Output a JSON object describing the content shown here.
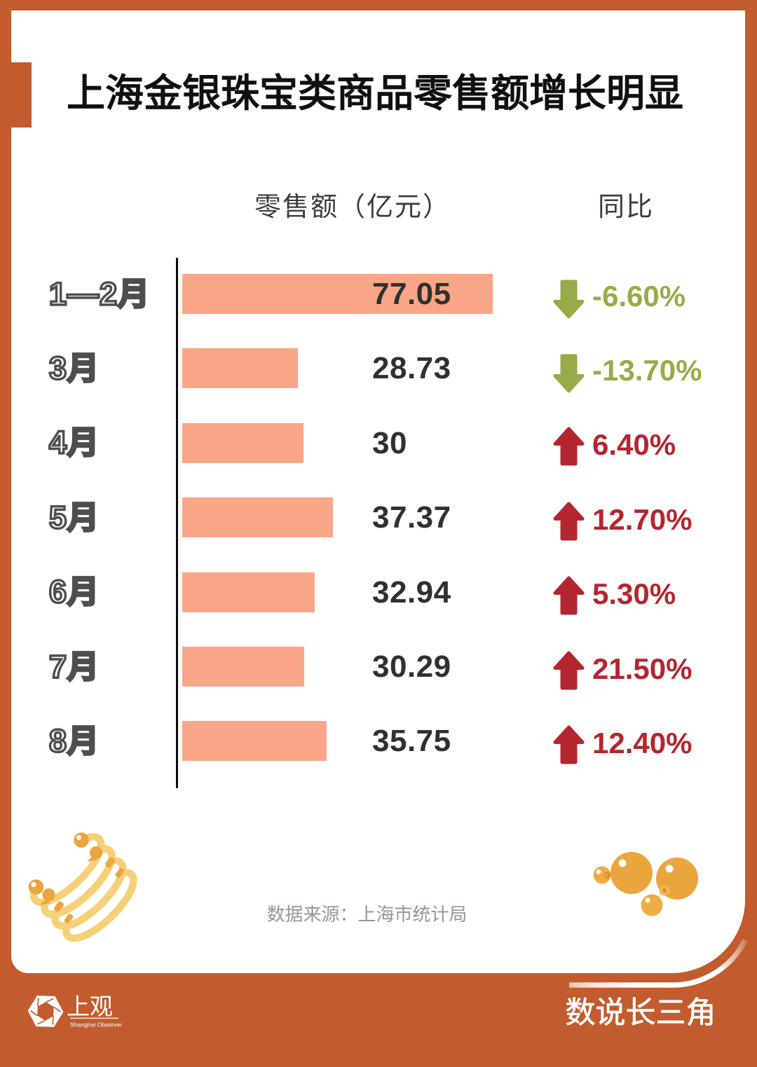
{
  "page": {
    "title": "上海金银珠宝类商品零售额增长明显",
    "source_note": "数据来源：上海市统计局",
    "footer": {
      "logo_cn": "上观",
      "logo_en": "Shanghai Observer",
      "brand": "数说长三角"
    },
    "colors": {
      "frame": "#C25B2D",
      "card": "#FFFFFF",
      "bar": "#F8A687",
      "up": "#B4262F",
      "down": "#97AB48",
      "gold_light": "#F5CE70",
      "gold_dark": "#EBA53E"
    }
  },
  "chart_data": {
    "type": "bar",
    "orientation": "horizontal",
    "title": "上海金银珠宝类商品零售额增长明显",
    "column_headers": {
      "value": "零售额（亿元）",
      "yoy": "同比"
    },
    "categories": [
      "1—2月",
      "3月",
      "4月",
      "5月",
      "6月",
      "7月",
      "8月"
    ],
    "values": [
      77.05,
      28.73,
      30,
      37.37,
      32.94,
      30.29,
      35.75
    ],
    "value_labels": [
      "77.05",
      "28.73",
      "30",
      "37.37",
      "32.94",
      "30.29",
      "35.75"
    ],
    "yoy": [
      {
        "label": "-6.60%",
        "direction": "down"
      },
      {
        "label": "-13.70%",
        "direction": "down"
      },
      {
        "label": "6.40%",
        "direction": "up"
      },
      {
        "label": "12.70%",
        "direction": "up"
      },
      {
        "label": "5.30%",
        "direction": "up"
      },
      {
        "label": "21.50%",
        "direction": "up"
      },
      {
        "label": "12.40%",
        "direction": "up"
      }
    ],
    "xlim": [
      0,
      80
    ],
    "legend": false,
    "grid": false,
    "source": "数据来源：上海市统计局"
  }
}
